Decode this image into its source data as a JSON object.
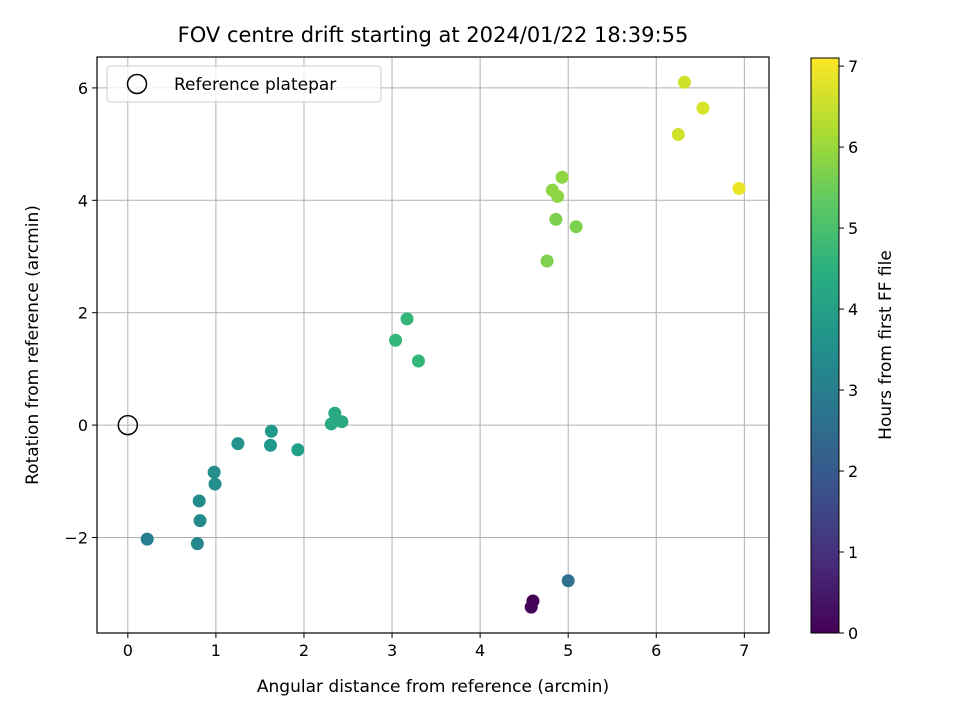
{
  "chart_data": {
    "type": "scatter",
    "title": "FOV centre drift starting at 2024/01/22 18:39:55",
    "xlabel": "Angular distance from reference (arcmin)",
    "ylabel": "Rotation from reference (arcmin)",
    "xlim": [
      -0.35,
      7.28
    ],
    "ylim": [
      -3.7,
      6.55
    ],
    "xticks": [
      0,
      1,
      2,
      3,
      4,
      5,
      6,
      7
    ],
    "yticks": [
      -2,
      0,
      2,
      4,
      6
    ],
    "ytick_labels": [
      "−2",
      "0",
      "2",
      "4",
      "6"
    ],
    "grid": true,
    "legend": {
      "placement": "top-left",
      "entries": [
        {
          "label": "Reference platepar",
          "marker": "open-circle",
          "x": 0,
          "y": 0
        }
      ]
    },
    "colorbar": {
      "label": "Hours from first FF file",
      "range": [
        0,
        7.1
      ],
      "ticks": [
        0,
        1,
        2,
        3,
        4,
        5,
        6,
        7
      ],
      "colormap": "viridis"
    },
    "points": [
      {
        "x": 4.6,
        "y": -3.13,
        "c": 0.0
      },
      {
        "x": 4.58,
        "y": -3.24,
        "c": 0.1
      },
      {
        "x": 5.0,
        "y": -2.77,
        "c": 2.6
      },
      {
        "x": 0.22,
        "y": -2.03,
        "c": 3.0
      },
      {
        "x": 0.79,
        "y": -2.11,
        "c": 3.3
      },
      {
        "x": 0.82,
        "y": -1.7,
        "c": 3.4
      },
      {
        "x": 0.81,
        "y": -1.35,
        "c": 3.4
      },
      {
        "x": 0.99,
        "y": -1.05,
        "c": 3.5
      },
      {
        "x": 0.98,
        "y": -0.84,
        "c": 3.5
      },
      {
        "x": 1.25,
        "y": -0.33,
        "c": 3.6
      },
      {
        "x": 1.63,
        "y": -0.11,
        "c": 3.8
      },
      {
        "x": 1.62,
        "y": -0.36,
        "c": 3.8
      },
      {
        "x": 1.93,
        "y": -0.44,
        "c": 4.0
      },
      {
        "x": 2.35,
        "y": 0.21,
        "c": 4.3
      },
      {
        "x": 2.31,
        "y": 0.02,
        "c": 4.3
      },
      {
        "x": 2.43,
        "y": 0.06,
        "c": 4.3
      },
      {
        "x": 3.04,
        "y": 1.51,
        "c": 4.7
      },
      {
        "x": 3.17,
        "y": 1.89,
        "c": 4.7
      },
      {
        "x": 3.3,
        "y": 1.14,
        "c": 4.7
      },
      {
        "x": 4.76,
        "y": 2.92,
        "c": 5.7
      },
      {
        "x": 4.86,
        "y": 3.66,
        "c": 5.7
      },
      {
        "x": 5.09,
        "y": 3.53,
        "c": 5.7
      },
      {
        "x": 4.88,
        "y": 4.07,
        "c": 5.9
      },
      {
        "x": 4.82,
        "y": 4.18,
        "c": 5.9
      },
      {
        "x": 4.93,
        "y": 4.41,
        "c": 5.9
      },
      {
        "x": 6.25,
        "y": 5.17,
        "c": 6.6
      },
      {
        "x": 6.32,
        "y": 6.1,
        "c": 6.6
      },
      {
        "x": 6.53,
        "y": 5.64,
        "c": 6.7
      },
      {
        "x": 6.94,
        "y": 4.21,
        "c": 6.9
      }
    ]
  }
}
